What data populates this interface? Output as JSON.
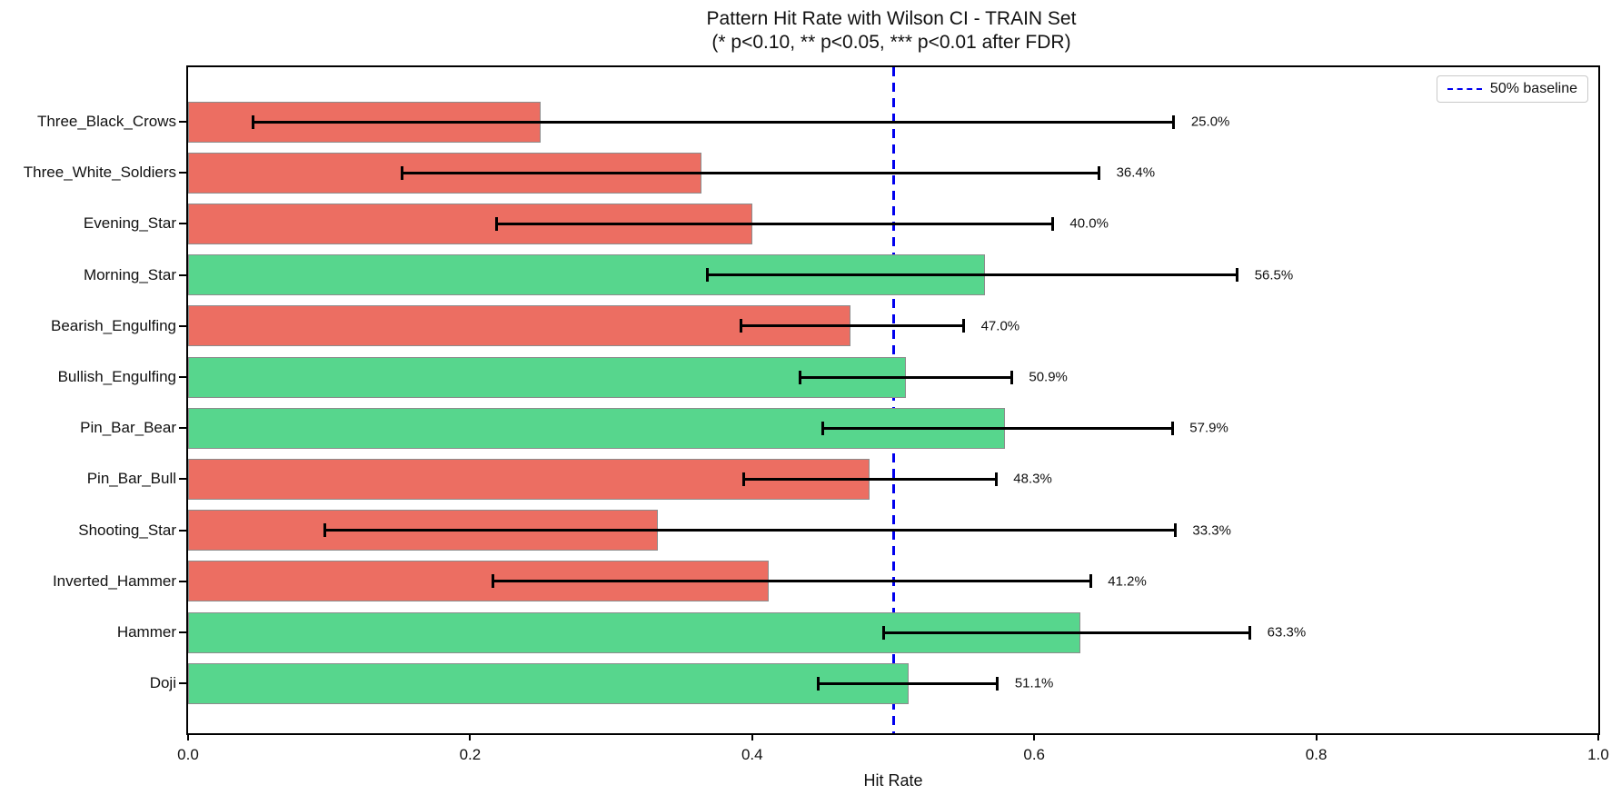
{
  "chart_data": {
    "type": "bar",
    "orientation": "horizontal",
    "title": "Pattern Hit Rate with Wilson CI - TRAIN Set",
    "subtitle": "(* p<0.10, ** p<0.05, *** p<0.01 after FDR)",
    "xlabel": "Hit Rate",
    "xlim": [
      0.0,
      1.0
    ],
    "xticks": [
      0.0,
      0.2,
      0.4,
      0.6,
      0.8,
      1.0
    ],
    "xtick_labels": [
      "0.0",
      "0.2",
      "0.4",
      "0.6",
      "0.8",
      "1.0"
    ],
    "grid": false,
    "baseline": {
      "value": 0.5,
      "style": "dashed",
      "color": "#0000ee"
    },
    "legend": {
      "position": "upper right",
      "entries": [
        {
          "label": "50% baseline",
          "symbol": "dashed-line",
          "color": "#0000ee"
        }
      ]
    },
    "colors": {
      "green": "#57d68d",
      "red": "#ec6e62",
      "bar_edge": "#8c8c8c",
      "error_bar": "#000000",
      "baseline": "#0000ee"
    },
    "categories": [
      "Three_Black_Crows",
      "Three_White_Soldiers",
      "Evening_Star",
      "Morning_Star",
      "Bearish_Engulfing",
      "Bullish_Engulfing",
      "Pin_Bar_Bear",
      "Pin_Bar_Bull",
      "Shooting_Star",
      "Inverted_Hammer",
      "Hammer",
      "Doji"
    ],
    "series": [
      {
        "name": "hit_rate_with_wilson_ci",
        "points": [
          {
            "category": "Three_Black_Crows",
            "value": 0.25,
            "label": "25.0%",
            "ci_low": 0.046,
            "ci_high": 0.699,
            "color": "red"
          },
          {
            "category": "Three_White_Soldiers",
            "value": 0.364,
            "label": "36.4%",
            "ci_low": 0.152,
            "ci_high": 0.646,
            "color": "red"
          },
          {
            "category": "Evening_Star",
            "value": 0.4,
            "label": "40.0%",
            "ci_low": 0.219,
            "ci_high": 0.613,
            "color": "red"
          },
          {
            "category": "Morning_Star",
            "value": 0.565,
            "label": "56.5%",
            "ci_low": 0.368,
            "ci_high": 0.744,
            "color": "green"
          },
          {
            "category": "Bearish_Engulfing",
            "value": 0.47,
            "label": "47.0%",
            "ci_low": 0.392,
            "ci_high": 0.55,
            "color": "red"
          },
          {
            "category": "Bullish_Engulfing",
            "value": 0.509,
            "label": "50.9%",
            "ci_low": 0.434,
            "ci_high": 0.584,
            "color": "green"
          },
          {
            "category": "Pin_Bar_Bear",
            "value": 0.579,
            "label": "57.9%",
            "ci_low": 0.45,
            "ci_high": 0.698,
            "color": "green"
          },
          {
            "category": "Pin_Bar_Bull",
            "value": 0.483,
            "label": "48.3%",
            "ci_low": 0.394,
            "ci_high": 0.573,
            "color": "red"
          },
          {
            "category": "Shooting_Star",
            "value": 0.333,
            "label": "33.3%",
            "ci_low": 0.097,
            "ci_high": 0.7,
            "color": "red"
          },
          {
            "category": "Inverted_Hammer",
            "value": 0.412,
            "label": "41.2%",
            "ci_low": 0.216,
            "ci_high": 0.64,
            "color": "red"
          },
          {
            "category": "Hammer",
            "value": 0.633,
            "label": "63.3%",
            "ci_low": 0.493,
            "ci_high": 0.753,
            "color": "green"
          },
          {
            "category": "Doji",
            "value": 0.511,
            "label": "51.1%",
            "ci_low": 0.447,
            "ci_high": 0.574,
            "color": "green"
          }
        ]
      }
    ]
  }
}
